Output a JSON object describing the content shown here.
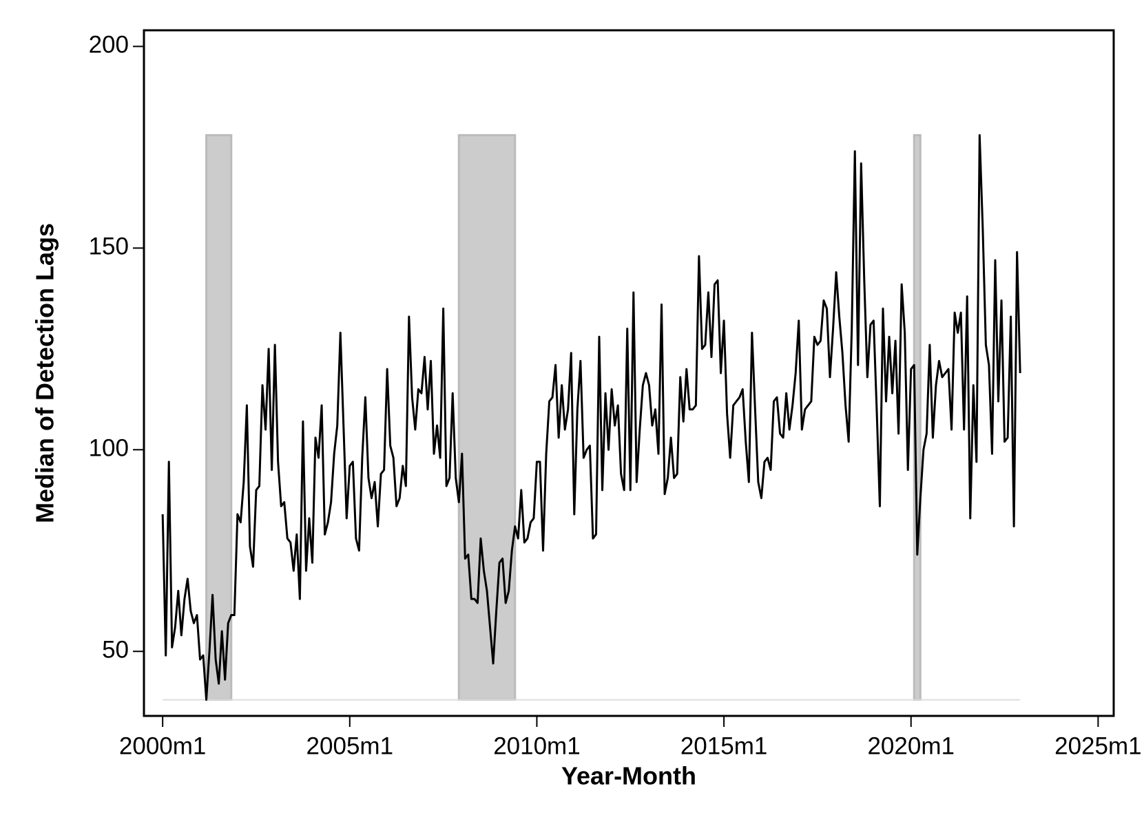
{
  "chart_data": {
    "type": "line",
    "x_label": "Year-Month",
    "y_label": "Median of Detection Lags",
    "x": [
      "2000m1",
      "2000m2",
      "2000m3",
      "2000m4",
      "2000m5",
      "2000m6",
      "2000m7",
      "2000m8",
      "2000m9",
      "2000m10",
      "2000m11",
      "2000m12",
      "2001m1",
      "2001m2",
      "2001m3",
      "2001m4",
      "2001m5",
      "2001m6",
      "2001m7",
      "2001m8",
      "2001m9",
      "2001m10",
      "2001m11",
      "2001m12",
      "2002m1",
      "2002m2",
      "2002m3",
      "2002m4",
      "2002m5",
      "2002m6",
      "2002m7",
      "2002m8",
      "2002m9",
      "2002m10",
      "2002m11",
      "2002m12",
      "2003m1",
      "2003m2",
      "2003m3",
      "2003m4",
      "2003m5",
      "2003m6",
      "2003m7",
      "2003m8",
      "2003m9",
      "2003m10",
      "2003m11",
      "2003m12",
      "2004m1",
      "2004m2",
      "2004m3",
      "2004m4",
      "2004m5",
      "2004m6",
      "2004m7",
      "2004m8",
      "2004m9",
      "2004m10",
      "2004m11",
      "2004m12",
      "2005m1",
      "2005m2",
      "2005m3",
      "2005m4",
      "2005m5",
      "2005m6",
      "2005m7",
      "2005m8",
      "2005m9",
      "2005m10",
      "2005m11",
      "2005m12",
      "2006m1",
      "2006m2",
      "2006m3",
      "2006m4",
      "2006m5",
      "2006m6",
      "2006m7",
      "2006m8",
      "2006m9",
      "2006m10",
      "2006m11",
      "2006m12",
      "2007m1",
      "2007m2",
      "2007m3",
      "2007m4",
      "2007m5",
      "2007m6",
      "2007m7",
      "2007m8",
      "2007m9",
      "2007m10",
      "2007m11",
      "2007m12",
      "2008m1",
      "2008m2",
      "2008m3",
      "2008m4",
      "2008m5",
      "2008m6",
      "2008m7",
      "2008m8",
      "2008m9",
      "2008m10",
      "2008m11",
      "2008m12",
      "2009m1",
      "2009m2",
      "2009m3",
      "2009m4",
      "2009m5",
      "2009m6",
      "2009m7",
      "2009m8",
      "2009m9",
      "2009m10",
      "2009m11",
      "2009m12",
      "2010m1",
      "2010m2",
      "2010m3",
      "2010m4",
      "2010m5",
      "2010m6",
      "2010m7",
      "2010m8",
      "2010m9",
      "2010m10",
      "2010m11",
      "2010m12",
      "2011m1",
      "2011m2",
      "2011m3",
      "2011m4",
      "2011m5",
      "2011m6",
      "2011m7",
      "2011m8",
      "2011m9",
      "2011m10",
      "2011m11",
      "2011m12",
      "2012m1",
      "2012m2",
      "2012m3",
      "2012m4",
      "2012m5",
      "2012m6",
      "2012m7",
      "2012m8",
      "2012m9",
      "2012m10",
      "2012m11",
      "2012m12",
      "2013m1",
      "2013m2",
      "2013m3",
      "2013m4",
      "2013m5",
      "2013m6",
      "2013m7",
      "2013m8",
      "2013m9",
      "2013m10",
      "2013m11",
      "2013m12",
      "2014m1",
      "2014m2",
      "2014m3",
      "2014m4",
      "2014m5",
      "2014m6",
      "2014m7",
      "2014m8",
      "2014m9",
      "2014m10",
      "2014m11",
      "2014m12",
      "2015m1",
      "2015m2",
      "2015m3",
      "2015m4",
      "2015m5",
      "2015m6",
      "2015m7",
      "2015m8",
      "2015m9",
      "2015m10",
      "2015m11",
      "2015m12",
      "2016m1",
      "2016m2",
      "2016m3",
      "2016m4",
      "2016m5",
      "2016m6",
      "2016m7",
      "2016m8",
      "2016m9",
      "2016m10",
      "2016m11",
      "2016m12",
      "2017m1",
      "2017m2",
      "2017m3",
      "2017m4",
      "2017m5",
      "2017m6",
      "2017m7",
      "2017m8",
      "2017m9",
      "2017m10",
      "2017m11",
      "2017m12",
      "2018m1",
      "2018m2",
      "2018m3",
      "2018m4",
      "2018m5",
      "2018m6",
      "2018m7",
      "2018m8",
      "2018m9",
      "2018m10",
      "2018m11",
      "2018m12",
      "2019m1",
      "2019m2",
      "2019m3",
      "2019m4",
      "2019m5",
      "2019m6",
      "2019m7",
      "2019m8",
      "2019m9",
      "2019m10",
      "2019m11",
      "2019m12",
      "2020m1",
      "2020m2",
      "2020m3",
      "2020m4",
      "2020m5",
      "2020m6",
      "2020m7",
      "2020m8",
      "2020m9",
      "2020m10",
      "2020m11",
      "2020m12",
      "2021m1",
      "2021m2",
      "2021m3",
      "2021m4",
      "2021m5",
      "2021m6",
      "2021m7",
      "2021m8",
      "2021m9",
      "2021m10",
      "2021m11",
      "2021m12",
      "2022m1",
      "2022m2",
      "2022m3",
      "2022m4",
      "2022m5",
      "2022m6",
      "2022m7",
      "2022m8",
      "2022m9",
      "2022m10",
      "2022m11",
      "2022m12"
    ],
    "series": [
      {
        "color": "#000000",
        "values": [
          84,
          49,
          97,
          51,
          56,
          65,
          54,
          63,
          68,
          60,
          57,
          59,
          48,
          49,
          38,
          50,
          64,
          48,
          42,
          55,
          43,
          57,
          59,
          59,
          84,
          82,
          92,
          111,
          76,
          71,
          90,
          91,
          116,
          105,
          125,
          95,
          126,
          97,
          86,
          87,
          78,
          77,
          70,
          79,
          63,
          107,
          70,
          83,
          72,
          103,
          98,
          111,
          79,
          82,
          87,
          99,
          106,
          129,
          106,
          83,
          96,
          97,
          78,
          75,
          98,
          113,
          93,
          88,
          92,
          81,
          94,
          95,
          120,
          101,
          98,
          86,
          88,
          96,
          91,
          133,
          113,
          105,
          115,
          114,
          123,
          110,
          122,
          99,
          106,
          98,
          135,
          91,
          93,
          114,
          93,
          87,
          99,
          73,
          74,
          63,
          63,
          62,
          78,
          70,
          65,
          56,
          47,
          60,
          72,
          73,
          62,
          65,
          75,
          81,
          78,
          90,
          77,
          78,
          82,
          83,
          97,
          97,
          75,
          99,
          112,
          113,
          121,
          103,
          116,
          105,
          110,
          124,
          84,
          110,
          122,
          98,
          100,
          101,
          78,
          79,
          128,
          90,
          114,
          100,
          115,
          106,
          111,
          94,
          90,
          130,
          90,
          139,
          92,
          105,
          116,
          119,
          116,
          106,
          110,
          99,
          136,
          89,
          93,
          103,
          93,
          94,
          118,
          107,
          120,
          110,
          110,
          111,
          148,
          125,
          126,
          139,
          123,
          141,
          142,
          119,
          132,
          109,
          98,
          111,
          112,
          113,
          115,
          102,
          92,
          129,
          110,
          92,
          88,
          97,
          98,
          95,
          112,
          113,
          104,
          103,
          114,
          105,
          111,
          119,
          132,
          105,
          110,
          111,
          112,
          128,
          126,
          127,
          137,
          135,
          118,
          130,
          144,
          133,
          124,
          111,
          102,
          130,
          174,
          121,
          171,
          142,
          118,
          131,
          132,
          110,
          86,
          135,
          112,
          128,
          114,
          127,
          104,
          141,
          129,
          95,
          120,
          121,
          74,
          88,
          100,
          104,
          126,
          103,
          116,
          122,
          118,
          119,
          120,
          105,
          134,
          129,
          134,
          105,
          138,
          83,
          116,
          97,
          178,
          155,
          126,
          121,
          99,
          147,
          112,
          137,
          102,
          103,
          133,
          81,
          149,
          119
        ]
      }
    ],
    "shading": {
      "color": "#cccccc",
      "base": 38,
      "top": 178,
      "periods": [
        [
          "2001m3",
          "2001m11"
        ],
        [
          "2007m12",
          "2009m6"
        ],
        [
          "2020m2",
          "2020m4"
        ]
      ]
    },
    "xlim": [
      "1999m7",
      "2025m6"
    ],
    "xticks": [
      "2000m1",
      "2005m1",
      "2010m1",
      "2015m1",
      "2020m1",
      "2025m1"
    ],
    "ylim": [
      34,
      204
    ],
    "yticks": [
      50,
      100,
      150,
      200
    ]
  }
}
